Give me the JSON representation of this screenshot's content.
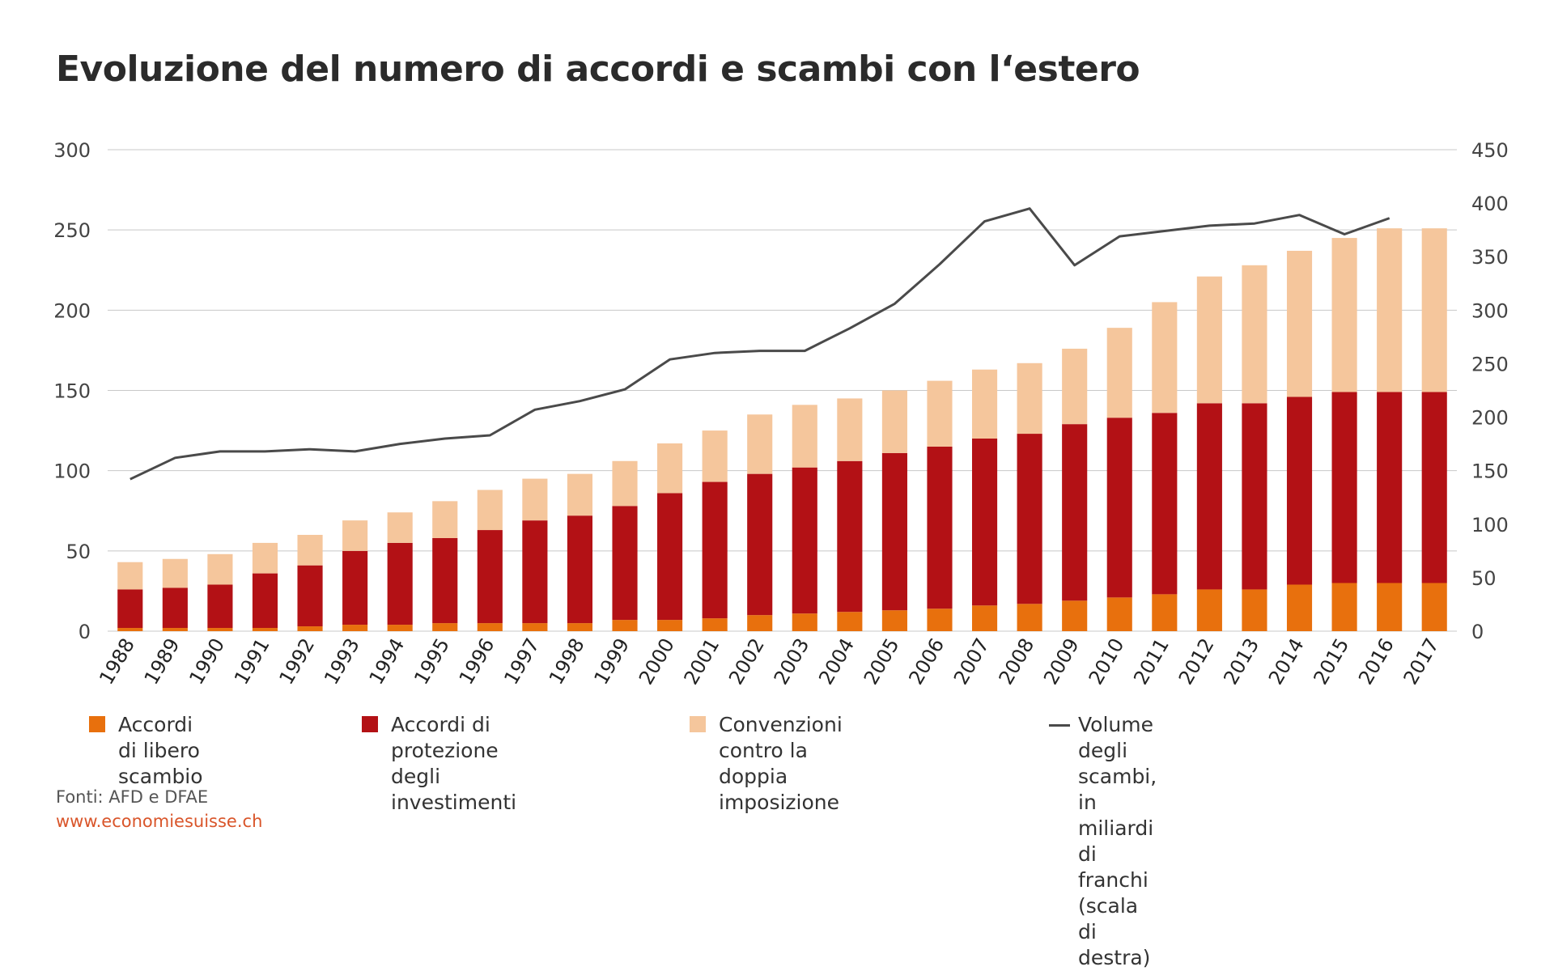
{
  "title": "Evoluzione del numero di accordi e scambi con l‘estero",
  "source": "Fonti: AFD e DFAE",
  "website": "www.economiesuisse.ch",
  "colors": {
    "free_trade": "#e8700d",
    "investment": "#b31115",
    "double_tax": "#f5c69c",
    "trade_volume": "#4a4a4a",
    "grid": "#c8c8c8",
    "website": "#d9552a"
  },
  "chart_data": {
    "type": "bar",
    "stacked": true,
    "categories": [
      "1988",
      "1989",
      "1990",
      "1991",
      "1992",
      "1993",
      "1994",
      "1995",
      "1996",
      "1997",
      "1998",
      "1999",
      "2000",
      "2001",
      "2002",
      "2003",
      "2004",
      "2005",
      "2006",
      "2007",
      "2008",
      "2009",
      "2010",
      "2011",
      "2012",
      "2013",
      "2014",
      "2015",
      "2016",
      "2017"
    ],
    "y_left": {
      "min": 0,
      "max": 300,
      "ticks": [
        "0",
        "50",
        "100",
        "150",
        "200",
        "250",
        "300"
      ]
    },
    "y_right": {
      "min": 0,
      "max": 450,
      "ticks": [
        "0",
        "50",
        "100",
        "150",
        "200",
        "250",
        "300",
        "350",
        "400",
        "450"
      ]
    },
    "grid": true,
    "legend_position": "bottom",
    "series": [
      {
        "name": "Accordi di libero scambio",
        "color_key": "free_trade",
        "axis": "left",
        "values": [
          2,
          2,
          2,
          2,
          3,
          4,
          4,
          5,
          5,
          5,
          5,
          7,
          7,
          8,
          10,
          11,
          12,
          13,
          14,
          16,
          17,
          19,
          21,
          23,
          26,
          26,
          29,
          30,
          30,
          30
        ]
      },
      {
        "name": "Accordi di protezione degli investimenti",
        "color_key": "investment",
        "axis": "left",
        "values": [
          24,
          25,
          27,
          34,
          38,
          46,
          51,
          53,
          58,
          64,
          67,
          71,
          79,
          85,
          88,
          91,
          94,
          98,
          101,
          104,
          106,
          110,
          112,
          113,
          116,
          116,
          117,
          119,
          119,
          119
        ]
      },
      {
        "name": "Convenzioni contro la doppia imposizione",
        "color_key": "double_tax",
        "axis": "left",
        "values": [
          17,
          18,
          19,
          19,
          19,
          19,
          19,
          23,
          25,
          26,
          26,
          28,
          31,
          32,
          37,
          39,
          39,
          39,
          41,
          43,
          44,
          47,
          56,
          69,
          79,
          86,
          91,
          96,
          102,
          102
        ]
      },
      {
        "name": "Volume degli scambi, in miliardi di franchi (scala di destra)",
        "color_key": "trade_volume",
        "axis": "right",
        "type": "line",
        "values": [
          142,
          162,
          168,
          168,
          170,
          168,
          175,
          180,
          183,
          207,
          215,
          226,
          254,
          260,
          262,
          262,
          283,
          306,
          343,
          383,
          395,
          342,
          369,
          374,
          379,
          381,
          389,
          371,
          386,
          null
        ]
      }
    ]
  },
  "legend": [
    {
      "line1": "Accordi di libero",
      "line2": "scambio"
    },
    {
      "line1": "Accordi di protezione degli",
      "line2": "investimenti"
    },
    {
      "line1": "Convenzioni contro la doppia",
      "line2": "imposizione"
    },
    {
      "line1": "Volume degli scambi, in miliardi di",
      "line2": "franchi (scala di destra)"
    }
  ]
}
